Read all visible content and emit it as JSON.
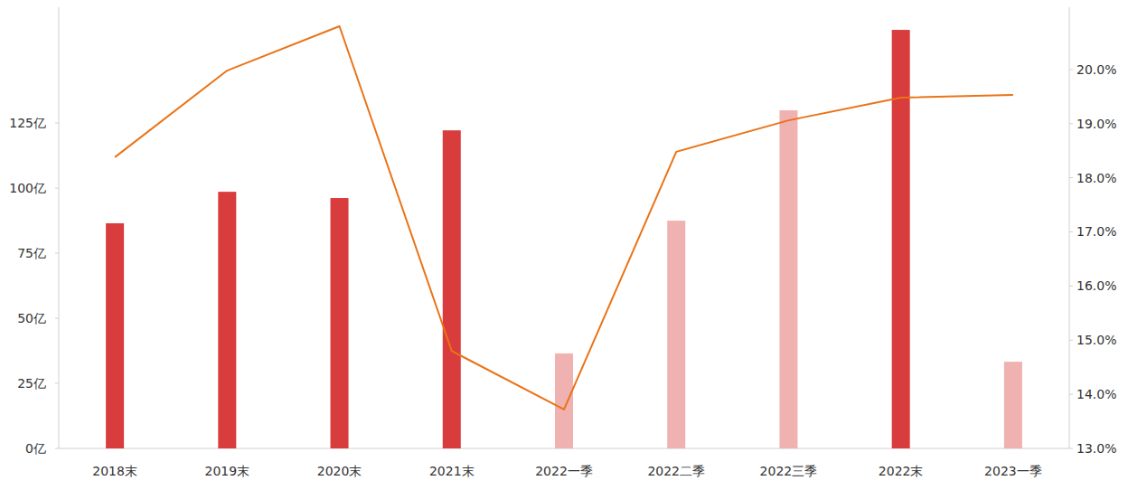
{
  "chart_data": {
    "type": "bar",
    "categories": [
      "2018末",
      "2019末",
      "2020末",
      "2021末",
      "2022一季",
      "2022二季",
      "2022三季",
      "2022末",
      "2023一季"
    ],
    "series": [
      {
        "type": "bar",
        "values": [
          86.5,
          98.6,
          96.2,
          122.2,
          36.5,
          87.5,
          129.9,
          160.8,
          33.3
        ],
        "colors": [
          "#d93c3c",
          "#d93c3c",
          "#d93c3c",
          "#d93c3c",
          "#f0b1b1",
          "#f0b1b1",
          "#f0b1b1",
          "#d93c3c",
          "#f0b1b1"
        ]
      },
      {
        "type": "line",
        "axis": "y2",
        "color": "#ea7317",
        "values": [
          18.38,
          19.98,
          20.8,
          14.8,
          13.72,
          18.48,
          19.06,
          19.48,
          19.53
        ]
      }
    ],
    "ylim": [
      0,
      169.5
    ],
    "yticks": [
      {
        "value": 0,
        "label": "0亿"
      },
      {
        "value": 25,
        "label": "25亿"
      },
      {
        "value": 50,
        "label": "50亿"
      },
      {
        "value": 75,
        "label": "75亿"
      },
      {
        "value": 100,
        "label": "100亿"
      },
      {
        "value": 125,
        "label": "125亿"
      }
    ],
    "y2lim": [
      13,
      21.15
    ],
    "y2ticks": [
      {
        "value": 13,
        "label": "13.0%"
      },
      {
        "value": 14,
        "label": "14.0%"
      },
      {
        "value": 15,
        "label": "15.0%"
      },
      {
        "value": 16,
        "label": "16.0%"
      },
      {
        "value": 17,
        "label": "17.0%"
      },
      {
        "value": 18,
        "label": "18.0%"
      },
      {
        "value": 19,
        "label": "19.0%"
      },
      {
        "value": 20,
        "label": "20.0%"
      }
    ],
    "grid": false
  }
}
